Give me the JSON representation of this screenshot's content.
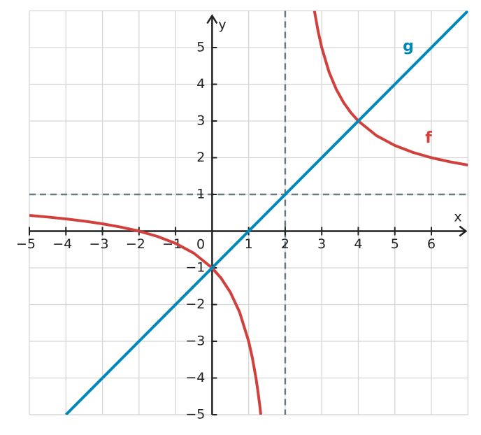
{
  "chart_data": {
    "type": "function-plot",
    "x_label": "x",
    "y_label": "y",
    "origin_label": "0",
    "xlim": [
      -5,
      7
    ],
    "ylim": [
      -5,
      6
    ],
    "xticks": [
      {
        "value": -5,
        "label": "−5"
      },
      {
        "value": -4,
        "label": "−4"
      },
      {
        "value": -3,
        "label": "−3"
      },
      {
        "value": -2,
        "label": "−2"
      },
      {
        "value": -1,
        "label": "−1"
      },
      1,
      2,
      3,
      4,
      5,
      6
    ],
    "yticks": [
      {
        "value": -5,
        "label": "−5"
      },
      {
        "value": -4,
        "label": "−4"
      },
      {
        "value": -3,
        "label": "−3"
      },
      {
        "value": -2,
        "label": "−2"
      },
      {
        "value": -1,
        "label": "−1"
      },
      1,
      2,
      3,
      4,
      5
    ],
    "grid": true,
    "asymptotes": {
      "x": 2,
      "y": 1,
      "color": "#6b7a80"
    },
    "series": [
      {
        "name": "f",
        "color": "#d0413e",
        "x": [
          -5,
          -4.5,
          -4,
          -3.5,
          -3,
          -2.5,
          -2,
          -1.5,
          -1,
          -0.5,
          0,
          0.25,
          0.5,
          0.75,
          1,
          1.1,
          1.2,
          1.25,
          1.3,
          1.333,
          null,
          2.8,
          2.9,
          3,
          3.2,
          3.4,
          3.6,
          3.8,
          4,
          4.5,
          5,
          5.5,
          6,
          6.5,
          7
        ],
        "values": [
          0.4286,
          0.3846,
          0.3333,
          0.2727,
          0.2,
          0.1111,
          0,
          -0.1429,
          -0.3333,
          -0.6,
          -1,
          -1.2857,
          -1.6667,
          -2.2,
          -3,
          -3.4444,
          -4,
          -4.3333,
          -4.7143,
          -4.997,
          null,
          6,
          5.4444,
          5,
          4.3333,
          3.8571,
          3.5,
          3.2222,
          3,
          2.6,
          2.3333,
          2.1429,
          2,
          1.8889,
          1.8
        ]
      },
      {
        "name": "g",
        "color": "#0088bb",
        "x": [
          -4,
          7
        ],
        "values": [
          -5,
          6
        ]
      }
    ]
  }
}
